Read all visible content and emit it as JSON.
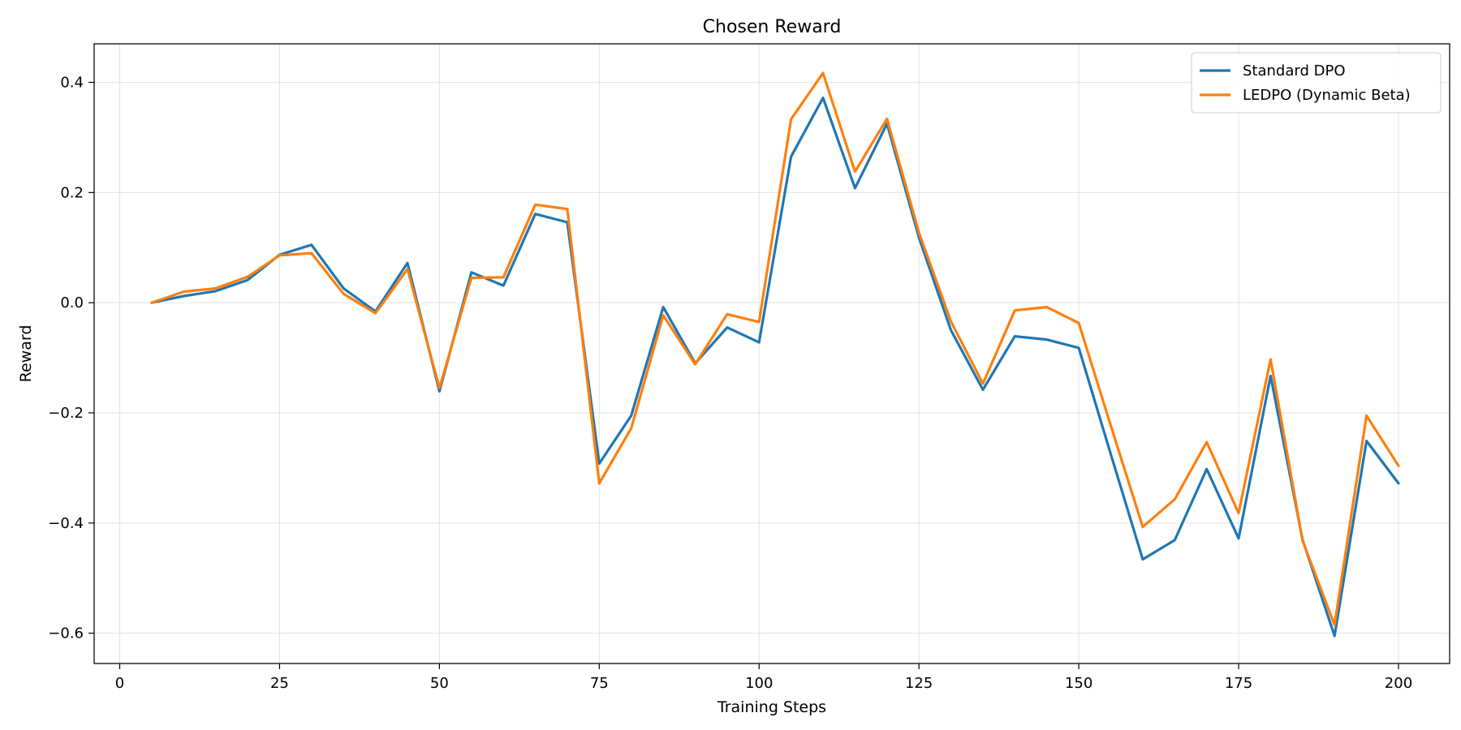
{
  "chart_data": {
    "type": "line",
    "title": "Chosen Reward",
    "xlabel": "Training Steps",
    "ylabel": "Reward",
    "xlim": [
      -4,
      208
    ],
    "ylim": [
      -0.655,
      0.47
    ],
    "xticks": [
      0,
      25,
      50,
      75,
      100,
      125,
      150,
      175,
      200
    ],
    "xtick_labels": [
      "0",
      "25",
      "50",
      "75",
      "100",
      "125",
      "150",
      "175",
      "200"
    ],
    "yticks": [
      -0.6,
      -0.4,
      -0.2,
      0.0,
      0.2,
      0.4
    ],
    "ytick_labels": [
      "−0.6",
      "−0.4",
      "−0.2",
      "0.0",
      "0.2",
      "0.4"
    ],
    "grid": true,
    "legend_position": "top-right",
    "x": [
      5,
      10,
      15,
      20,
      25,
      30,
      35,
      40,
      45,
      50,
      55,
      60,
      65,
      70,
      75,
      80,
      85,
      90,
      95,
      100,
      105,
      110,
      115,
      120,
      125,
      130,
      135,
      140,
      145,
      150,
      155,
      160,
      165,
      170,
      175,
      180,
      185,
      190,
      195,
      200
    ],
    "series": [
      {
        "name": "Standard DPO",
        "color": "#1f77b4",
        "values": [
          0.0,
          0.012,
          0.021,
          0.041,
          0.087,
          0.105,
          0.026,
          -0.016,
          0.072,
          -0.161,
          0.055,
          0.031,
          0.161,
          0.146,
          -0.292,
          -0.205,
          -0.008,
          -0.11,
          -0.045,
          -0.072,
          0.265,
          0.372,
          0.208,
          0.325,
          0.118,
          -0.05,
          -0.158,
          -0.061,
          -0.067,
          -0.082,
          -0.275,
          -0.466,
          -0.431,
          -0.302,
          -0.428,
          -0.133,
          -0.43,
          -0.605,
          -0.251,
          -0.328
        ]
      },
      {
        "name": "LEDPO (Dynamic Beta)",
        "color": "#ff7f0e",
        "values": [
          0.0,
          0.02,
          0.026,
          0.047,
          0.086,
          0.09,
          0.016,
          -0.019,
          0.061,
          -0.155,
          0.045,
          0.046,
          0.178,
          0.17,
          -0.328,
          -0.228,
          -0.023,
          -0.112,
          -0.021,
          -0.035,
          0.333,
          0.417,
          0.238,
          0.334,
          0.127,
          -0.034,
          -0.147,
          -0.014,
          -0.008,
          -0.037,
          -0.223,
          -0.407,
          -0.357,
          -0.253,
          -0.382,
          -0.103,
          -0.432,
          -0.585,
          -0.205,
          -0.296
        ]
      }
    ]
  }
}
